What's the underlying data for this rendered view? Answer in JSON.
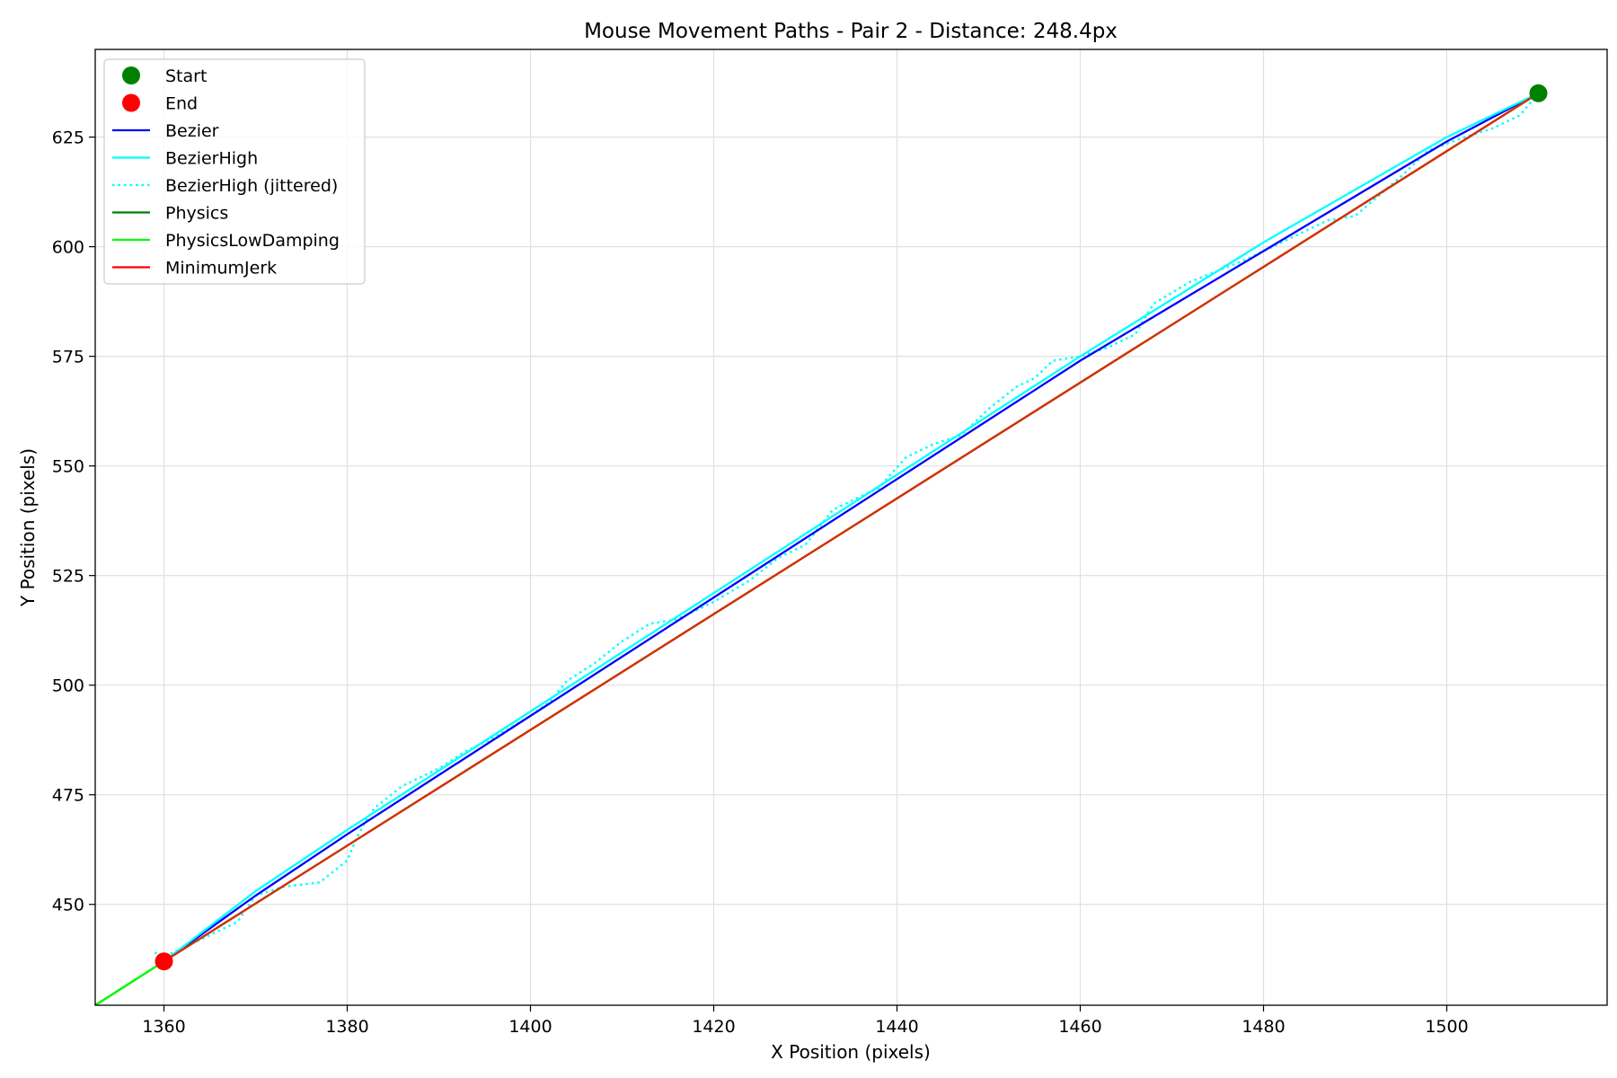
{
  "chart_data": {
    "type": "line",
    "title": "Mouse Movement Paths - Pair 2 - Distance: 248.4px",
    "xlabel": "X Position (pixels)",
    "ylabel": "Y Position (pixels)",
    "xlim": [
      1352.5,
      1517.5
    ],
    "ylim": [
      427,
      645
    ],
    "xticks": [
      1360,
      1380,
      1400,
      1420,
      1440,
      1460,
      1480,
      1500
    ],
    "yticks": [
      450,
      475,
      500,
      525,
      550,
      575,
      600,
      625
    ],
    "grid": true,
    "legend_position": "top-left",
    "markers": [
      {
        "name": "Start",
        "color": "#008000",
        "point": [
          1510,
          635
        ]
      },
      {
        "name": "End",
        "color": "#ff0000",
        "point": [
          1360,
          437
        ]
      }
    ],
    "series": [
      {
        "name": "Bezier",
        "color": "#0000ff",
        "style": "solid",
        "points": [
          [
            1510,
            635
          ],
          [
            1500,
            624
          ],
          [
            1480,
            599
          ],
          [
            1460,
            574
          ],
          [
            1440,
            547
          ],
          [
            1420,
            520
          ],
          [
            1400,
            493
          ],
          [
            1380,
            466
          ],
          [
            1370,
            452
          ],
          [
            1360,
            437
          ]
        ]
      },
      {
        "name": "BezierHigh",
        "color": "#00ffff",
        "style": "solid",
        "points": [
          [
            1510,
            635
          ],
          [
            1500,
            625
          ],
          [
            1480,
            601
          ],
          [
            1460,
            575
          ],
          [
            1440,
            548
          ],
          [
            1420,
            521
          ],
          [
            1400,
            494
          ],
          [
            1380,
            467
          ],
          [
            1370,
            453
          ],
          [
            1360,
            437
          ]
        ]
      },
      {
        "name": "BezierHigh (jittered)",
        "color": "#00ffff",
        "style": "dotted",
        "points": [
          [
            1510,
            635
          ],
          [
            1508,
            630
          ],
          [
            1505,
            627
          ],
          [
            1502,
            625
          ],
          [
            1498,
            622
          ],
          [
            1495,
            616
          ],
          [
            1490,
            607
          ],
          [
            1487,
            606
          ],
          [
            1483,
            602
          ],
          [
            1478,
            597
          ],
          [
            1472,
            592
          ],
          [
            1468,
            587
          ],
          [
            1466,
            580
          ],
          [
            1463,
            577
          ],
          [
            1460,
            575
          ],
          [
            1457,
            574
          ],
          [
            1455,
            570
          ],
          [
            1453,
            568
          ],
          [
            1450,
            563
          ],
          [
            1447,
            557
          ],
          [
            1444,
            555
          ],
          [
            1441,
            552
          ],
          [
            1438,
            545
          ],
          [
            1433,
            540
          ],
          [
            1430,
            532
          ],
          [
            1427,
            529
          ],
          [
            1424,
            524
          ],
          [
            1420,
            519
          ],
          [
            1416,
            515
          ],
          [
            1413,
            514
          ],
          [
            1410,
            510
          ],
          [
            1407,
            505
          ],
          [
            1404,
            501
          ],
          [
            1402,
            496
          ],
          [
            1400,
            493
          ],
          [
            1396,
            488
          ],
          [
            1393,
            485
          ],
          [
            1390,
            481
          ],
          [
            1386,
            477
          ],
          [
            1383,
            472
          ],
          [
            1382,
            469
          ],
          [
            1381,
            465
          ],
          [
            1380,
            460
          ],
          [
            1377,
            455
          ],
          [
            1373,
            454
          ],
          [
            1370,
            452
          ],
          [
            1368,
            446
          ],
          [
            1364,
            442
          ],
          [
            1360,
            438
          ],
          [
            1359,
            439
          ]
        ]
      },
      {
        "name": "Physics",
        "color": "#008000",
        "style": "solid",
        "points": [
          [
            1352.5,
            427
          ],
          [
            1360,
            437
          ]
        ]
      },
      {
        "name": "PhysicsLowDamping",
        "color": "#00ff00",
        "style": "solid",
        "points": [
          [
            1352.5,
            427
          ],
          [
            1360,
            437
          ]
        ]
      },
      {
        "name": "MinimumJerk",
        "color": "#ff0000",
        "style": "solid",
        "points": [
          [
            1510,
            635
          ],
          [
            1360,
            437
          ]
        ]
      }
    ],
    "extra_lines": [
      {
        "color": "#cc3300",
        "points": [
          [
            1510,
            635
          ],
          [
            1360,
            437
          ]
        ]
      }
    ]
  }
}
